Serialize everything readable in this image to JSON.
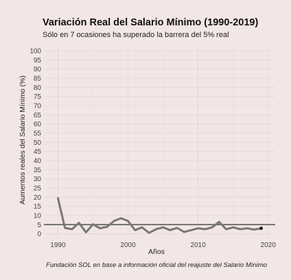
{
  "chart_data": {
    "type": "line",
    "title": "Variación Real del Salario Mínimo (1990-2019)",
    "subtitle": "Sólo en 7 ocasiones ha superado la barrera del 5% real",
    "xlabel": "Años",
    "ylabel": "Aumentos reales del Salario Mínimo (%)",
    "caption": "Fundación SOL en base a información oficial del reajuste del Salario Mínimo",
    "xlim": [
      1988,
      2021
    ],
    "ylim": [
      -2,
      103
    ],
    "xticks": [
      1990,
      2000,
      2010,
      2020
    ],
    "yticks": [
      0,
      5,
      10,
      15,
      20,
      25,
      30,
      35,
      40,
      45,
      50,
      55,
      60,
      65,
      70,
      75,
      80,
      85,
      90,
      95,
      100
    ],
    "reference_line": {
      "y": 5,
      "color": "#555555"
    },
    "series": [
      {
        "color": "#777777",
        "x": [
          1990,
          1991,
          1992,
          1993,
          1994,
          1995,
          1996,
          1997,
          1998,
          1999,
          2000,
          2001,
          2002,
          2003,
          2004,
          2005,
          2006,
          2007,
          2008,
          2009,
          2010,
          2011,
          2012,
          2013,
          2014,
          2015,
          2016,
          2017,
          2018,
          2019
        ],
        "values": [
          19.5,
          3.2,
          2.5,
          6.0,
          0.8,
          5.2,
          3.0,
          3.8,
          7.0,
          8.5,
          7.0,
          2.0,
          3.5,
          0.5,
          2.5,
          3.5,
          2.0,
          3.2,
          1.0,
          2.0,
          3.0,
          2.5,
          3.5,
          6.5,
          2.5,
          3.5,
          2.5,
          3.0,
          2.3,
          3.0
        ]
      }
    ],
    "highlight_point": {
      "x": 2019,
      "y": 3.0,
      "color": "#111111"
    }
  }
}
